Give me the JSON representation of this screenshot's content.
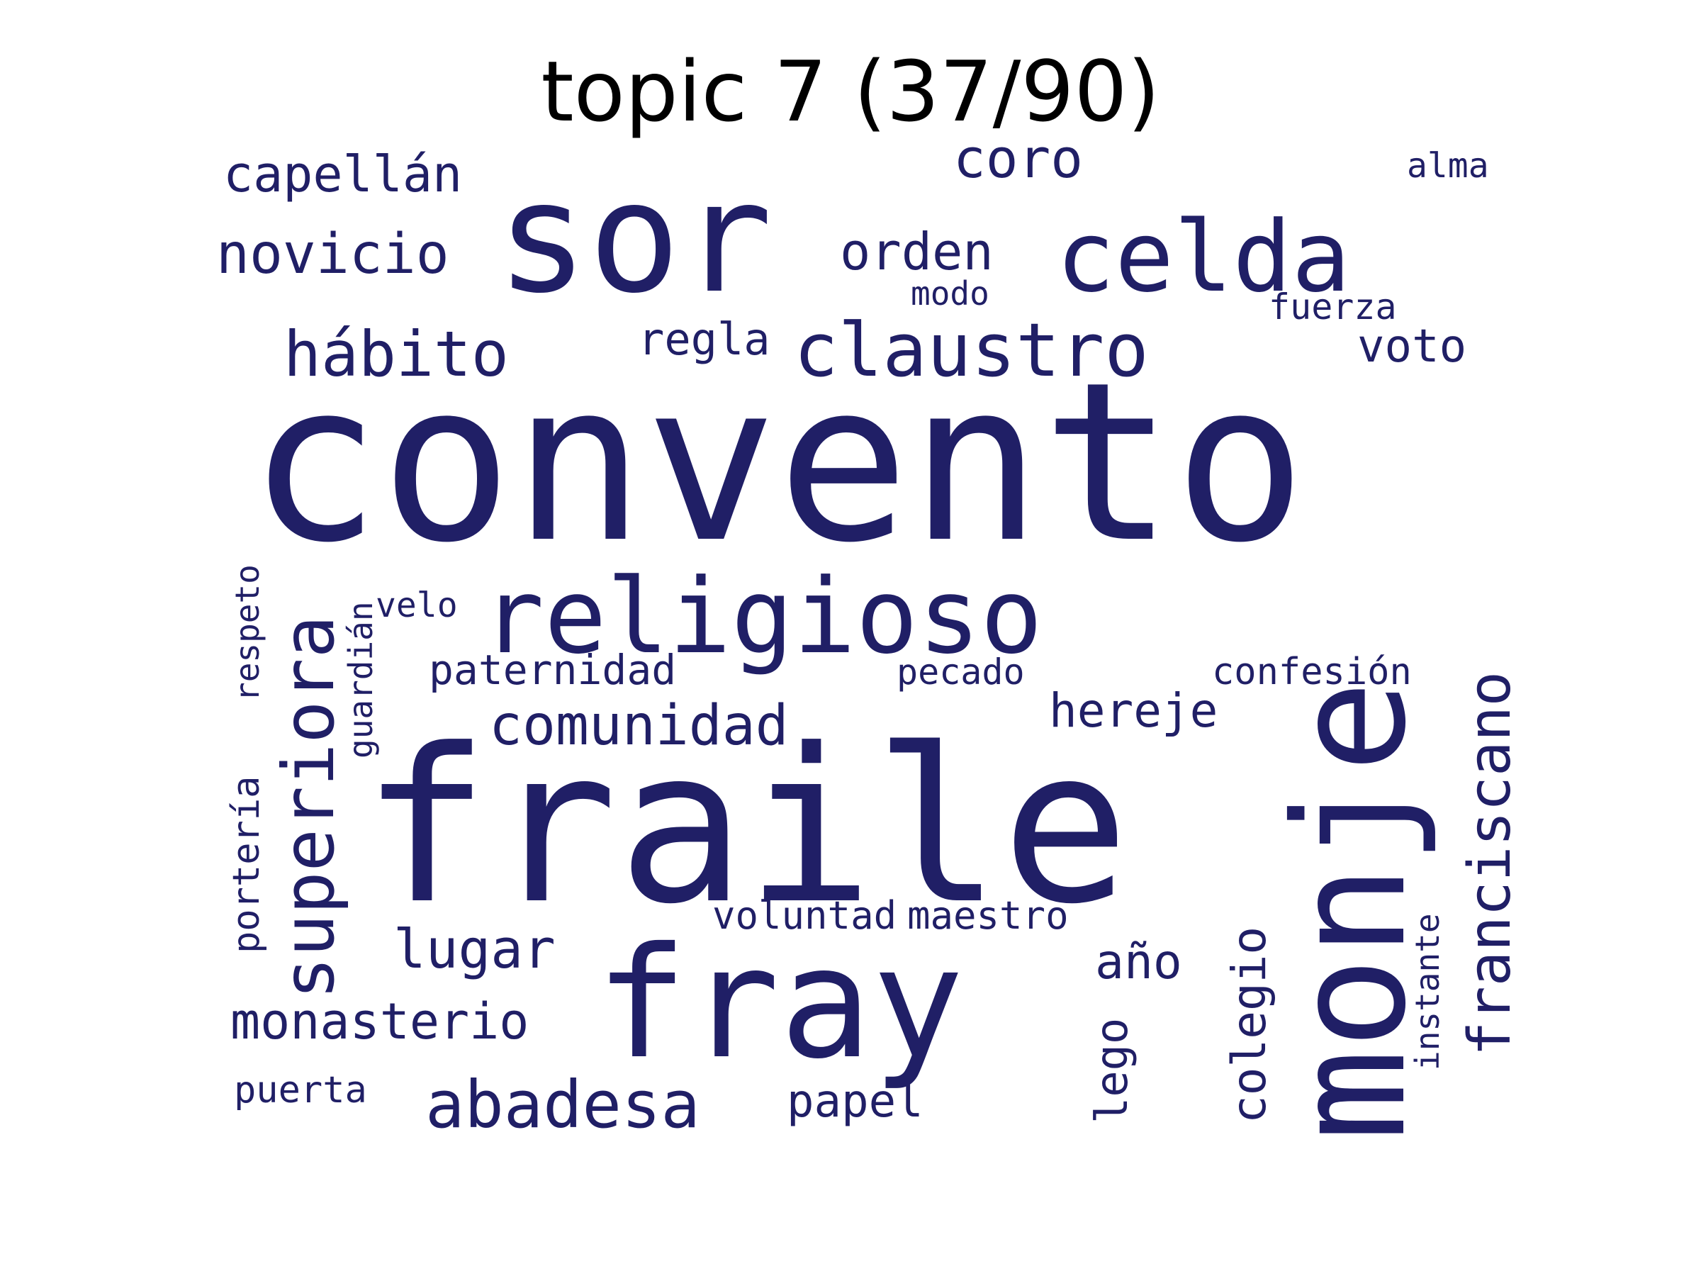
{
  "title": "topic 7 (37/90)",
  "word_color": "#201f66",
  "words": [
    {
      "text": "convento",
      "weight": 1.0
    },
    {
      "text": "fraile",
      "weight": 0.93
    },
    {
      "text": "monje",
      "weight": 0.68
    },
    {
      "text": "sor",
      "weight": 0.62
    },
    {
      "text": "fray",
      "weight": 0.62
    },
    {
      "text": "religioso",
      "weight": 0.45
    },
    {
      "text": "celda",
      "weight": 0.42
    },
    {
      "text": "claustro",
      "weight": 0.3
    },
    {
      "text": "superiora",
      "weight": 0.3
    },
    {
      "text": "abadesa",
      "weight": 0.25
    },
    {
      "text": "hábito",
      "weight": 0.24
    },
    {
      "text": "franciscano",
      "weight": 0.23
    },
    {
      "text": "comunidad",
      "weight": 0.2
    },
    {
      "text": "novicio",
      "weight": 0.2
    },
    {
      "text": "lugar",
      "weight": 0.19
    },
    {
      "text": "coro",
      "weight": 0.19
    },
    {
      "text": "orden",
      "weight": 0.18
    },
    {
      "text": "monasterio",
      "weight": 0.17
    },
    {
      "text": "capellán",
      "weight": 0.17
    },
    {
      "text": "año",
      "weight": 0.17
    },
    {
      "text": "colegio",
      "weight": 0.16
    },
    {
      "text": "hereje",
      "weight": 0.16
    },
    {
      "text": "lego",
      "weight": 0.16
    },
    {
      "text": "papel",
      "weight": 0.15
    },
    {
      "text": "voto",
      "weight": 0.15
    },
    {
      "text": "regla",
      "weight": 0.14
    },
    {
      "text": "paternidad",
      "weight": 0.14
    },
    {
      "text": "portería",
      "weight": 0.13
    },
    {
      "text": "confesión",
      "weight": 0.12
    },
    {
      "text": "puerta",
      "weight": 0.12
    },
    {
      "text": "maestro",
      "weight": 0.12
    },
    {
      "text": "voluntad",
      "weight": 0.11
    },
    {
      "text": "guardián",
      "weight": 0.11
    },
    {
      "text": "instante",
      "weight": 0.11
    },
    {
      "text": "respeto",
      "weight": 0.11
    },
    {
      "text": "pecado",
      "weight": 0.11
    },
    {
      "text": "fuerza",
      "weight": 0.1
    },
    {
      "text": "velo",
      "weight": 0.1
    },
    {
      "text": "alma",
      "weight": 0.1
    },
    {
      "text": "modo",
      "weight": 0.1
    }
  ]
}
